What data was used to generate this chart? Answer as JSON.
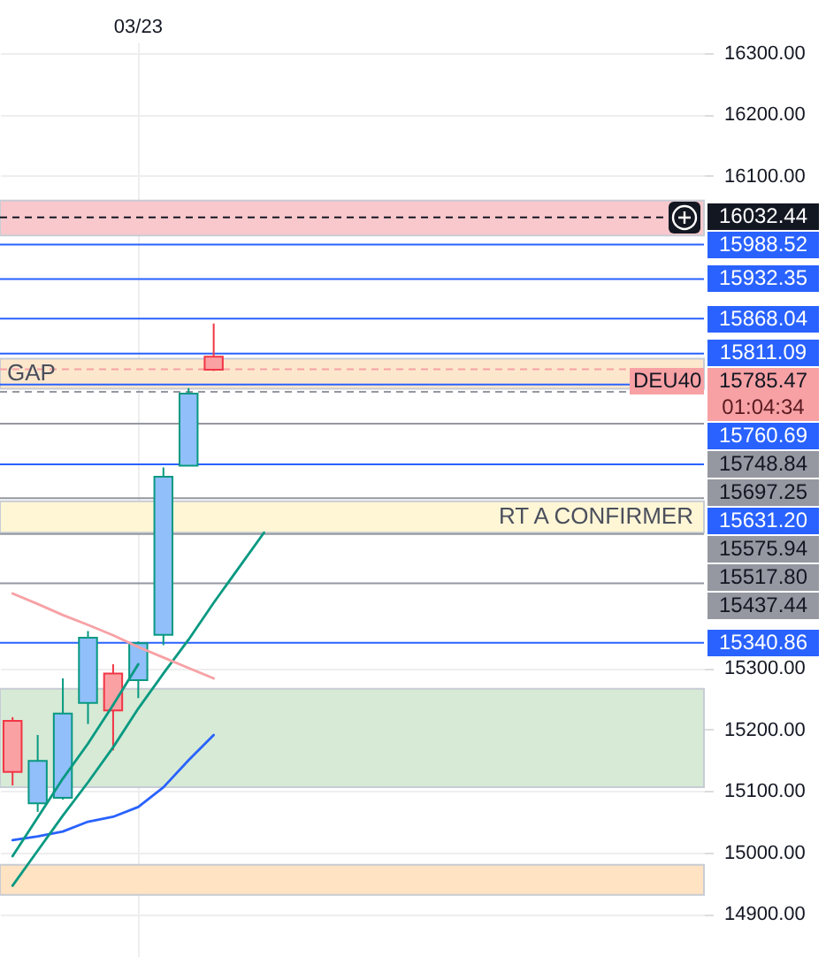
{
  "chart_data": {
    "type": "candlestick",
    "categories": [
      null,
      null,
      null,
      null,
      null,
      "03/23",
      null,
      null,
      null,
      null,
      null,
      null,
      null,
      null,
      null,
      null,
      null,
      null,
      null,
      null,
      null,
      null,
      null,
      null,
      null,
      null,
      null,
      null
    ],
    "ohlc": [
      [
        15214,
        15220,
        15109,
        15131
      ],
      [
        15080,
        15191,
        15066,
        15149
      ],
      [
        15089,
        15283,
        15086,
        15226
      ],
      [
        15243,
        15360,
        15209,
        15349
      ],
      [
        15291,
        15306,
        15166,
        15231
      ],
      [
        15280,
        15343,
        15251,
        15340
      ],
      [
        15354,
        15626,
        15337,
        15611
      ],
      [
        15629,
        15755,
        15629,
        15746
      ],
      [
        15806,
        15860,
        15783,
        15785
      ],
      null,
      null,
      null,
      null,
      null,
      null,
      null,
      null,
      null,
      null,
      null,
      null,
      null,
      null,
      null,
      null,
      null,
      null,
      null
    ],
    "series": [
      {
        "type": "line",
        "color": "#2962ff",
        "values": [
          15020,
          15026,
          15034,
          15050,
          15058,
          15074,
          15106,
          15150,
          15191,
          null,
          null,
          null,
          null,
          null,
          null,
          null,
          null,
          null,
          null,
          null,
          null,
          null,
          null,
          null,
          null,
          null,
          null,
          null
        ]
      },
      {
        "type": "line",
        "color": "#089981",
        "values": [
          14994,
          15057,
          15120,
          15177,
          15240,
          15306,
          null,
          null,
          null,
          null,
          null,
          null,
          null,
          null,
          null,
          null,
          null,
          null,
          null,
          null,
          null,
          null,
          null,
          null,
          null,
          null,
          null,
          null
        ]
      },
      {
        "type": "line",
        "color": "#089981",
        "values": [
          14946,
          15003,
          15060,
          15114,
          15171,
          15234,
          15291,
          15346,
          15406,
          15463,
          15520,
          null,
          null,
          null,
          null,
          null,
          null,
          null,
          null,
          null,
          null,
          null,
          null,
          null,
          null,
          null,
          null,
          null
        ]
      },
      {
        "type": "line",
        "color": "#f7a1a5",
        "values": [
          15421,
          15404,
          15386,
          15370,
          15353,
          15334,
          15317,
          15300,
          15283,
          null,
          null,
          null,
          null,
          null,
          null,
          null,
          null,
          null,
          null,
          null,
          null,
          null,
          null,
          null,
          null,
          null,
          null,
          null
        ]
      }
    ],
    "ylim": [
      14830,
      16317
    ],
    "yticks": [
      {
        "value": 16300,
        "label": "16300.00"
      },
      {
        "value": 16200,
        "label": "16200.00"
      },
      {
        "value": 16100,
        "label": "16100.00"
      },
      {
        "value": 15300,
        "label": "15300.00"
      },
      {
        "value": 15200,
        "label": "15200.00"
      },
      {
        "value": 15100,
        "label": "15100.00"
      },
      {
        "value": 15000,
        "label": "15000.00"
      },
      {
        "value": 14900,
        "label": "14900.00"
      }
    ],
    "grid": true,
    "ref_lines": [
      {
        "axis": "y",
        "value": 16032.44,
        "label": "16032.44",
        "color": "#131722",
        "line_style": "dashed"
      },
      {
        "axis": "y",
        "value": 15988.52,
        "label": "15988.52",
        "color": "#2962ff"
      },
      {
        "axis": "y",
        "value": 15932.35,
        "label": "15932.35",
        "color": "#2962ff"
      },
      {
        "axis": "y",
        "value": 15868.04,
        "label": "15868.04",
        "color": "#2962ff"
      },
      {
        "axis": "y",
        "value": 15811.09,
        "label": "15811.09",
        "color": "#2962ff"
      },
      {
        "axis": "y",
        "value": 15785.47,
        "label": "15785.47",
        "color": "#f7a1a5",
        "line_style": "dashed"
      },
      {
        "axis": "y",
        "value": 15760.69,
        "label": "15760.69",
        "color": "#2962ff"
      },
      {
        "axis": "y",
        "value": 15748.84,
        "label": "15748.84",
        "color": "#9598a1",
        "line_style": "dashed"
      },
      {
        "axis": "y",
        "value": 15697.25,
        "label": "15697.25",
        "color": "#9598a1"
      },
      {
        "axis": "y",
        "value": 15631.2,
        "label": "15631.20",
        "color": "#2962ff"
      },
      {
        "axis": "y",
        "value": 15575.94,
        "label": "15575.94",
        "color": "#9598a1"
      },
      {
        "axis": "y",
        "value": 15517.8,
        "label": "15517.80",
        "color": "#9598a1"
      },
      {
        "axis": "y",
        "value": 15437.44,
        "label": "15437.44",
        "color": "#9598a1"
      },
      {
        "axis": "y",
        "value": 15340.86,
        "label": "15340.86",
        "color": "#2962ff"
      }
    ],
    "bands": [
      {
        "axis": "y",
        "from": 16003,
        "to": 16060,
        "color": "#f8c8cc"
      },
      {
        "axis": "y",
        "from": 15106,
        "to": 15266,
        "color": "#d6ead6"
      },
      {
        "axis": "y",
        "from": 15520,
        "to": 15571,
        "color": "#fff6d6",
        "label": "RT A CONFIRMER"
      },
      {
        "axis": "y",
        "from": 14931,
        "to": 14980,
        "color": "#ffe3c2"
      },
      {
        "axis": "y",
        "from": 15754,
        "to": 15803,
        "color": "#fde7cc",
        "label": "GAP"
      }
    ],
    "annotations": [
      {
        "text": "DEU40",
        "y": 15785.47
      },
      "01:04:34"
    ]
  }
}
